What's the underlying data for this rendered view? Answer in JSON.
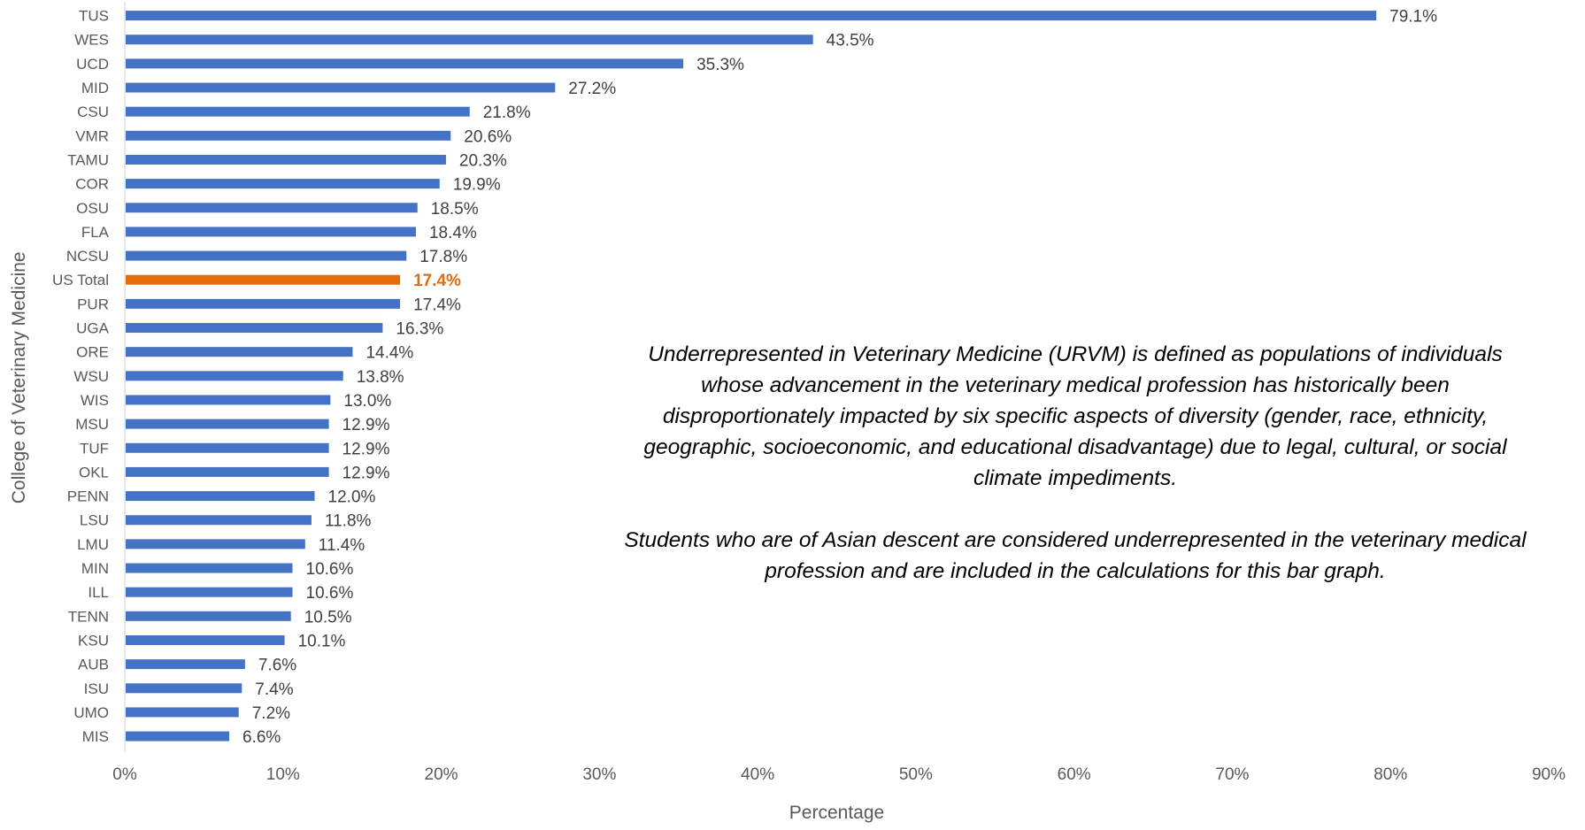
{
  "chart_data": {
    "type": "bar",
    "orientation": "horizontal",
    "title": "",
    "xlabel": "Percentage",
    "ylabel": "College of Veterinary Medicine",
    "xlim": [
      0,
      90
    ],
    "x_ticks": [
      "0%",
      "10%",
      "20%",
      "30%",
      "40%",
      "50%",
      "60%",
      "70%",
      "80%",
      "90%"
    ],
    "grid": false,
    "legend": "none",
    "categories": [
      "TUS",
      "WES",
      "UCD",
      "MID",
      "CSU",
      "VMR",
      "TAMU",
      "COR",
      "OSU",
      "FLA",
      "NCSU",
      "US Total",
      "PUR",
      "UGA",
      "ORE",
      "WSU",
      "WIS",
      "MSU",
      "TUF",
      "OKL",
      "PENN",
      "LSU",
      "LMU",
      "MIN",
      "ILL",
      "TENN",
      "KSU",
      "AUB",
      "ISU",
      "UMO",
      "MIS"
    ],
    "values": [
      79.1,
      43.5,
      35.3,
      27.2,
      21.8,
      20.6,
      20.3,
      19.9,
      18.5,
      18.4,
      17.8,
      17.4,
      17.4,
      16.3,
      14.4,
      13.8,
      13.0,
      12.9,
      12.9,
      12.9,
      12.0,
      11.8,
      11.4,
      10.6,
      10.6,
      10.5,
      10.1,
      7.6,
      7.4,
      7.2,
      6.6
    ],
    "value_labels": [
      "79.1%",
      "43.5%",
      "35.3%",
      "27.2%",
      "21.8%",
      "20.6%",
      "20.3%",
      "19.9%",
      "18.5%",
      "18.4%",
      "17.8%",
      "17.4%",
      "17.4%",
      "16.3%",
      "14.4%",
      "13.8%",
      "13.0%",
      "12.9%",
      "12.9%",
      "12.9%",
      "12.0%",
      "11.8%",
      "11.4%",
      "10.6%",
      "10.6%",
      "10.5%",
      "10.1%",
      "7.6%",
      "7.4%",
      "7.2%",
      "6.6%"
    ],
    "highlight_category": "US Total",
    "colors": {
      "bar": "#4472C4",
      "highlight": "#E46C0A",
      "axis": "#D9D9D9",
      "text": "#595959"
    }
  },
  "annotation": {
    "paragraph1": "Underrepresented in Veterinary Medicine (URVM) is defined as populations of individuals whose advancement in the veterinary medical profession has historically been disproportionately impacted by six specific aspects of diversity (gender, race, ethnicity, geographic, socioeconomic, and educational disadvantage) due to legal, cultural, or social climate impediments.",
    "paragraph2": "Students who are of Asian descent are considered underrepresented in the veterinary medical profession and are included in the calculations for this bar graph."
  }
}
